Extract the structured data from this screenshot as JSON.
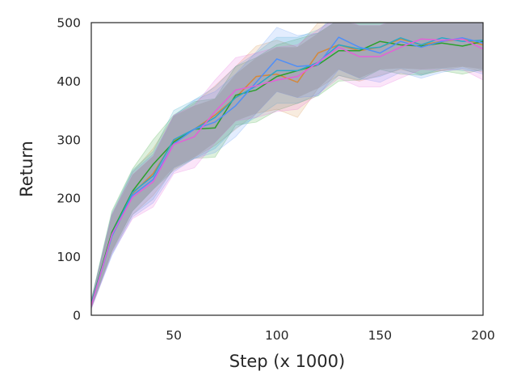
{
  "chart_data": {
    "type": "line",
    "title": "",
    "xlabel": "Step (x 1000)",
    "ylabel": "Return",
    "xlim": [
      10,
      200
    ],
    "ylim": [
      0,
      500
    ],
    "xticks": [
      50,
      100,
      150,
      200
    ],
    "yticks": [
      0,
      100,
      200,
      300,
      400,
      500
    ],
    "grid": false,
    "legend": "none",
    "x": [
      10,
      20,
      30,
      40,
      50,
      60,
      70,
      80,
      90,
      100,
      110,
      120,
      130,
      140,
      150,
      160,
      170,
      180,
      190,
      200
    ],
    "series": [
      {
        "color": "#d4883a",
        "values": [
          18,
          140,
          208,
          242,
          298,
          318,
          342,
          372,
          408,
          412,
          398,
          448,
          462,
          452,
          458,
          472,
          462,
          468,
          472,
          462
        ],
        "lower": [
          12,
          108,
          172,
          205,
          250,
          270,
          290,
          318,
          345,
          352,
          338,
          388,
          410,
          400,
          410,
          420,
          412,
          418,
          425,
          415
        ],
        "upper": [
          25,
          172,
          245,
          285,
          340,
          362,
          392,
          425,
          460,
          470,
          458,
          500,
          508,
          505,
          505,
          520,
          510,
          515,
          518,
          508
        ]
      },
      {
        "color": "#2ca02c",
        "values": [
          20,
          142,
          212,
          258,
          296,
          318,
          320,
          376,
          385,
          408,
          418,
          428,
          452,
          452,
          468,
          462,
          460,
          465,
          460,
          468
        ],
        "lower": [
          14,
          110,
          178,
          215,
          248,
          268,
          270,
          325,
          330,
          350,
          362,
          375,
          400,
          402,
          420,
          412,
          410,
          418,
          412,
          420
        ],
        "upper": [
          27,
          178,
          250,
          300,
          342,
          365,
          370,
          425,
          440,
          462,
          472,
          482,
          505,
          500,
          512,
          508,
          508,
          512,
          508,
          515
        ]
      },
      {
        "color": "#2aa8c9",
        "values": [
          19,
          138,
          210,
          238,
          300,
          318,
          338,
          372,
          392,
          418,
          418,
          432,
          462,
          455,
          458,
          474,
          462,
          474,
          468,
          470
        ],
        "lower": [
          13,
          105,
          172,
          198,
          252,
          268,
          285,
          320,
          338,
          362,
          362,
          378,
          410,
          402,
          408,
          422,
          410,
          422,
          418,
          418
        ],
        "upper": [
          26,
          175,
          248,
          280,
          350,
          368,
          390,
          425,
          448,
          475,
          475,
          488,
          512,
          508,
          510,
          522,
          512,
          522,
          518,
          520
        ]
      },
      {
        "color": "#4f8ff7",
        "values": [
          17,
          135,
          205,
          232,
          293,
          318,
          330,
          358,
          398,
          438,
          425,
          428,
          475,
          458,
          448,
          468,
          458,
          468,
          474,
          465
        ],
        "lower": [
          11,
          102,
          168,
          192,
          245,
          268,
          278,
          305,
          345,
          382,
          372,
          375,
          420,
          405,
          398,
          415,
          405,
          415,
          422,
          412
        ],
        "upper": [
          24,
          170,
          245,
          275,
          340,
          368,
          382,
          412,
          450,
          492,
          478,
          482,
          528,
          510,
          500,
          520,
          510,
          520,
          525,
          518
        ]
      },
      {
        "color": "#e45fd8",
        "values": [
          16,
          138,
          202,
          228,
          292,
          305,
          348,
          385,
          392,
          402,
          408,
          432,
          458,
          442,
          442,
          458,
          472,
          470,
          472,
          455
        ],
        "lower": [
          10,
          105,
          165,
          185,
          242,
          252,
          295,
          332,
          338,
          348,
          352,
          378,
          405,
          390,
          390,
          405,
          420,
          418,
          420,
          402
        ],
        "upper": [
          23,
          172,
          240,
          272,
          342,
          358,
          402,
          440,
          448,
          458,
          462,
          488,
          510,
          495,
          495,
          512,
          525,
          522,
          525,
          508
        ]
      }
    ]
  }
}
